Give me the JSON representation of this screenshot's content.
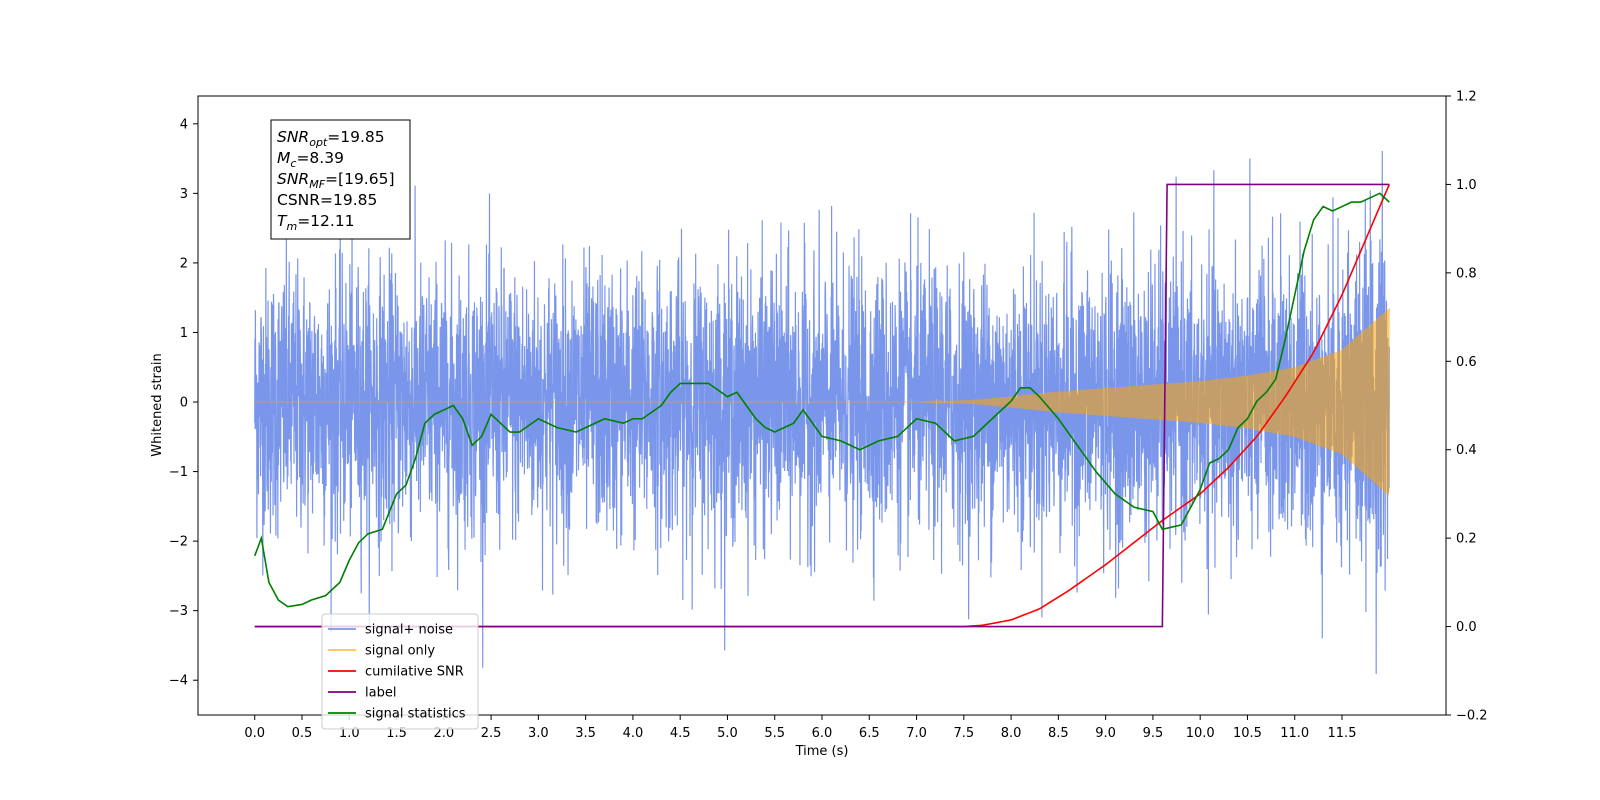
{
  "chart_data": {
    "type": "line",
    "title": "",
    "xlabel": "Time (s)",
    "ylabel": "Whitened strain",
    "xlim": [
      -0.6,
      12.6
    ],
    "ylim": [
      -4.5,
      4.4
    ],
    "y2lim": [
      -0.2,
      1.2
    ],
    "x_ticks": [
      0.0,
      0.5,
      1.0,
      1.5,
      2.0,
      2.5,
      3.0,
      3.5,
      4.0,
      4.5,
      5.0,
      5.5,
      6.0,
      6.5,
      7.0,
      7.5,
      8.0,
      8.5,
      9.0,
      9.5,
      10.0,
      10.5,
      11.0,
      11.5
    ],
    "y_ticks": [
      -4,
      -3,
      -2,
      -1,
      0,
      1,
      2,
      3,
      4
    ],
    "y2_ticks": [
      -0.2,
      0.0,
      0.2,
      0.4,
      0.6,
      0.8,
      1.0,
      1.2
    ],
    "grid": false,
    "legend_position": "lower-left",
    "annotation": {
      "lines": [
        {
          "base": "SNR",
          "sub": "opt",
          "rest": "=19.85"
        },
        {
          "base": "M",
          "sub": "c",
          "rest": "=8.39"
        },
        {
          "base": "SNR",
          "sub": "MF",
          "rest": "=[19.65]"
        },
        {
          "base": "CSNR",
          "sub": "",
          "rest": "=19.85"
        },
        {
          "base": "T",
          "sub": "m",
          "rest": "=12.11"
        }
      ]
    },
    "legend": [
      {
        "label": "signal+ noise",
        "color": "#4169e1"
      },
      {
        "label": "signal only",
        "color": "#ffa500"
      },
      {
        "label": "cumilative SNR",
        "color": "#ff0000"
      },
      {
        "label": "label",
        "color": "#800080"
      },
      {
        "label": "signal statistics",
        "color": "#008000"
      }
    ],
    "series": [
      {
        "name": "signal+ noise",
        "axis": "left",
        "color": "#4169e1",
        "style": "noise band",
        "x_range": [
          0.0,
          12.0
        ],
        "band_min": -4.1,
        "band_max": 3.8,
        "typical_amplitude": 1.5
      },
      {
        "name": "signal only",
        "axis": "left",
        "color": "#ffa500",
        "style": "chirp envelope",
        "x": [
          0.0,
          7.0,
          7.6,
          8.0,
          8.5,
          9.0,
          9.5,
          10.0,
          10.5,
          11.0,
          11.5,
          12.0
        ],
        "envelope": [
          0.0,
          0.0,
          0.03,
          0.08,
          0.15,
          0.2,
          0.25,
          0.3,
          0.38,
          0.5,
          0.75,
          1.35
        ]
      },
      {
        "name": "cumilative SNR",
        "axis": "right",
        "color": "#ff0000",
        "x": [
          0.0,
          7.5,
          7.7,
          8.0,
          8.3,
          8.6,
          9.0,
          9.3,
          9.6,
          10.0,
          10.3,
          10.6,
          10.9,
          11.2,
          11.5,
          11.8,
          12.0
        ],
        "y": [
          0.0,
          0.0,
          0.003,
          0.015,
          0.04,
          0.08,
          0.14,
          0.19,
          0.24,
          0.3,
          0.36,
          0.43,
          0.52,
          0.62,
          0.75,
          0.9,
          1.0
        ]
      },
      {
        "name": "label",
        "axis": "right",
        "color": "#800080",
        "x": [
          0.0,
          9.6,
          9.65,
          12.0
        ],
        "y": [
          0.0,
          0.0,
          1.0,
          1.0
        ]
      },
      {
        "name": "signal statistics",
        "axis": "right",
        "color": "#008000",
        "x": [
          0.0,
          0.07,
          0.15,
          0.25,
          0.35,
          0.5,
          0.6,
          0.75,
          0.9,
          1.0,
          1.1,
          1.2,
          1.35,
          1.5,
          1.6,
          1.7,
          1.8,
          1.9,
          2.0,
          2.1,
          2.2,
          2.3,
          2.4,
          2.5,
          2.6,
          2.7,
          2.8,
          3.0,
          3.2,
          3.4,
          3.5,
          3.7,
          3.9,
          4.0,
          4.1,
          4.3,
          4.4,
          4.5,
          4.6,
          4.8,
          5.0,
          5.1,
          5.2,
          5.3,
          5.4,
          5.5,
          5.6,
          5.7,
          5.8,
          6.0,
          6.2,
          6.4,
          6.6,
          6.8,
          7.0,
          7.2,
          7.4,
          7.6,
          7.8,
          8.0,
          8.1,
          8.2,
          8.3,
          8.5,
          8.7,
          8.9,
          9.1,
          9.3,
          9.5,
          9.6,
          9.8,
          9.9,
          10.0,
          10.1,
          10.2,
          10.3,
          10.4,
          10.5,
          10.6,
          10.7,
          10.8,
          10.9,
          11.0,
          11.1,
          11.2,
          11.3,
          11.4,
          11.5,
          11.6,
          11.7,
          11.8,
          11.9,
          12.0
        ],
        "y": [
          0.16,
          0.2,
          0.1,
          0.06,
          0.045,
          0.05,
          0.06,
          0.07,
          0.1,
          0.15,
          0.19,
          0.21,
          0.22,
          0.3,
          0.32,
          0.38,
          0.46,
          0.48,
          0.49,
          0.5,
          0.47,
          0.41,
          0.43,
          0.48,
          0.46,
          0.44,
          0.44,
          0.47,
          0.45,
          0.44,
          0.45,
          0.47,
          0.46,
          0.47,
          0.47,
          0.5,
          0.53,
          0.55,
          0.55,
          0.55,
          0.52,
          0.53,
          0.5,
          0.47,
          0.45,
          0.44,
          0.45,
          0.46,
          0.49,
          0.43,
          0.42,
          0.4,
          0.42,
          0.43,
          0.47,
          0.46,
          0.42,
          0.43,
          0.47,
          0.51,
          0.54,
          0.54,
          0.52,
          0.47,
          0.41,
          0.35,
          0.3,
          0.27,
          0.26,
          0.22,
          0.23,
          0.27,
          0.31,
          0.37,
          0.38,
          0.4,
          0.45,
          0.47,
          0.51,
          0.53,
          0.56,
          0.65,
          0.75,
          0.85,
          0.92,
          0.95,
          0.94,
          0.95,
          0.96,
          0.96,
          0.97,
          0.98,
          0.96
        ]
      }
    ]
  }
}
